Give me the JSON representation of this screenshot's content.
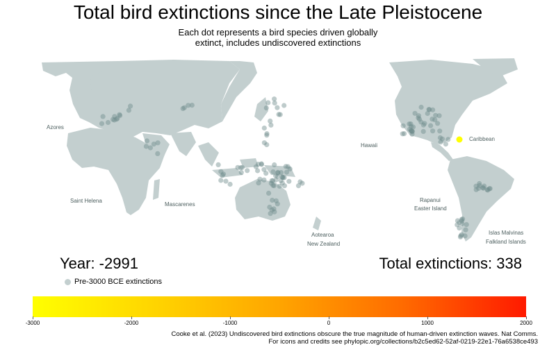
{
  "title": "Total bird extinctions since the Late Pleistocene",
  "subtitle_line1": "Each dot represents a bird species driven globally",
  "subtitle_line2": "extinct, includes undiscovered extinctions",
  "labels": {
    "azores": "Azores",
    "saint_helena": "Saint Helena",
    "mascarenes": "Mascarenes",
    "hawaii": "Hawaii",
    "caribbean": "Caribbean",
    "rapanui": "Rapanui",
    "easter_island": "Easter Island",
    "aotearoa": "Aotearoa",
    "new_zealand": "New Zealand",
    "islas_malvinas": "Islas Malvinas",
    "falkland_islands": "Falkland Islands"
  },
  "year_text": "Year: -2991",
  "total_text": "Total extinctions: 338",
  "legend_label": "Pre-3000 BCE extinctions",
  "colors": {
    "land": "#c3cfcf",
    "dot": "#6e8b8b",
    "highlight": "#ffff00"
  },
  "colorbar": {
    "ticks": [
      "-3000",
      "-2000",
      "-1000",
      "0",
      "1000",
      "2000"
    ]
  },
  "credit_line1": "Cooke et al. (2023) Undiscovered bird extinctions obscure the true magnitude of human-driven extinction waves. Nat Comms.",
  "credit_line2": "For icons and credits see phylopic.org/collections/b2c5ed62-52af-0219-22e1-76a6538ce493"
}
